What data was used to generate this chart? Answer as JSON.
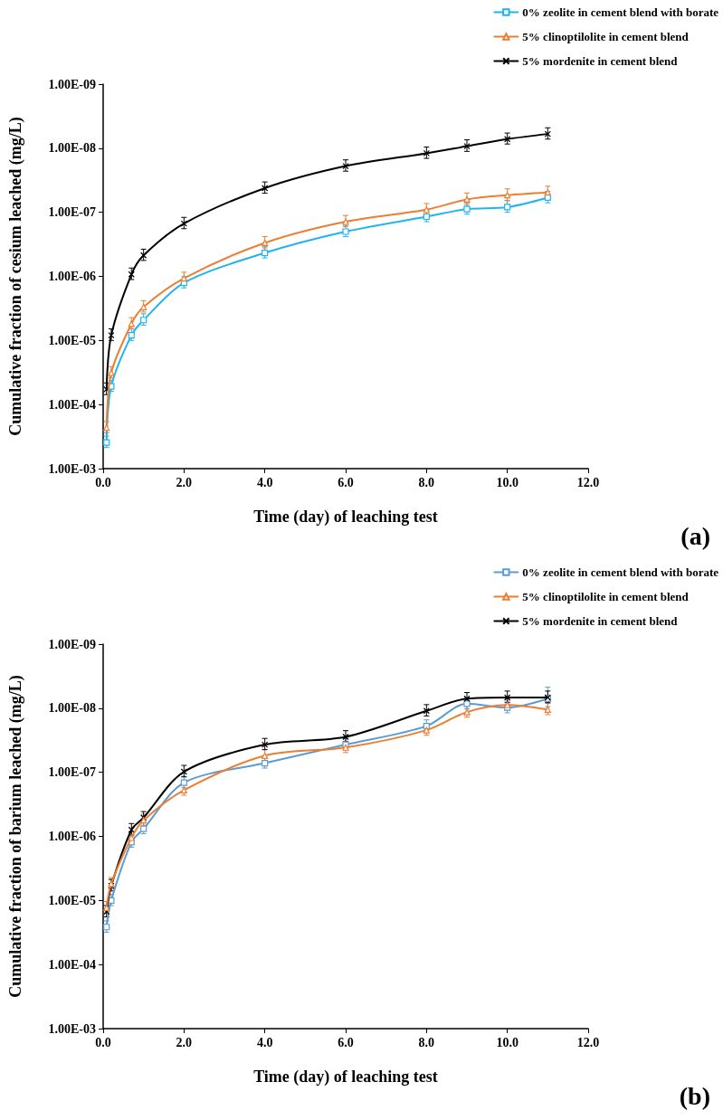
{
  "chart_data": [
    {
      "type": "line",
      "xlabel": "Time (day) of leaching test",
      "ylabel": "Cumulative fraction of cesium leached (mg/L)",
      "annotations": [
        "(a)"
      ],
      "log": "y",
      "grid": false,
      "legend": "top right",
      "line_style": "solid",
      "xlim": [
        0,
        12
      ],
      "xticks": [
        {
          "value": 0,
          "label": "0.0"
        },
        {
          "value": 2,
          "label": "2.0"
        },
        {
          "value": 4,
          "label": "4.0"
        },
        {
          "value": 6,
          "label": "6.0"
        },
        {
          "value": 8,
          "label": "8.0"
        },
        {
          "value": 10,
          "label": "10.0"
        },
        {
          "value": 12,
          "label": "12.0"
        }
      ],
      "ylim": [
        0.001,
        1e-09
      ],
      "yticks": [
        {
          "value": 0.001,
          "label": "1.00E-03"
        },
        {
          "value": 0.0001,
          "label": "1.00E-04"
        },
        {
          "value": 1e-05,
          "label": "1.00E-05"
        },
        {
          "value": 1e-06,
          "label": "1.00E-06"
        },
        {
          "value": 1e-07,
          "label": "1.00E-07"
        },
        {
          "value": 1e-08,
          "label": "1.00E-08"
        },
        {
          "value": 1e-09,
          "label": "1.00E-09"
        }
      ],
      "x": [
        0.083,
        0.2,
        0.7,
        1,
        2,
        4,
        6,
        8,
        9,
        10,
        11
      ],
      "series": [
        {
          "name": "0% zeolite in cement blend with borate",
          "color": "#1fb4f0",
          "marker": "square",
          "values": [
            0.00039,
            5.2e-05,
            8.3e-06,
            4.8e-06,
            1.26e-06,
            4.3e-07,
            2e-07,
            1.17e-07,
            8.9e-08,
            8.3e-08,
            5.9e-08
          ],
          "errors": [
            7.8e-05,
            1e-05,
            1.7e-06,
            9.6e-07,
            2.5e-07,
            8.6e-08,
            4e-08,
            2.3e-08,
            1.8e-08,
            1.7e-08,
            1.2e-08
          ]
        },
        {
          "name": "5% clinoptilolite in cement blend",
          "color": "#ed7d31",
          "marker": "triangle",
          "values": [
            0.00023,
            3.2e-05,
            5.5e-06,
            3e-06,
            1.07e-06,
            3e-07,
            1.4e-07,
            9.1e-08,
            6.3e-08,
            5.4e-08,
            4.9e-08
          ],
          "errors": [
            4.6e-05,
            6.4e-06,
            1.1e-06,
            6e-07,
            2.1e-07,
            6e-08,
            2.8e-08,
            1.8e-08,
            1.3e-08,
            1.1e-08,
            9.8e-09
          ]
        },
        {
          "name": "5% mordenite in cement blend",
          "color": "#000000",
          "marker": "cross",
          "values": [
            5.8e-05,
            8.3e-06,
            9.3e-07,
            4.7e-07,
            1.5e-07,
            4.2e-08,
            1.9e-08,
            1.2e-08,
            9.3e-09,
            7.2e-09,
            6e-09
          ],
          "errors": [
            1.2e-05,
            1.7e-06,
            1.9e-07,
            9.4e-08,
            3e-08,
            8.4e-09,
            3.8e-09,
            2.4e-09,
            1.9e-09,
            1.4e-09,
            1.2e-09
          ]
        }
      ]
    },
    {
      "type": "line",
      "xlabel": "Time (day) of leaching test",
      "ylabel": "Cumulative fraction of barium leached (mg/L)",
      "annotations": [
        "(b)"
      ],
      "log": "y",
      "grid": false,
      "legend": "top right",
      "line_style": "solid",
      "xlim": [
        0,
        12
      ],
      "xticks": [
        {
          "value": 0,
          "label": "0.0"
        },
        {
          "value": 2,
          "label": "2.0"
        },
        {
          "value": 4,
          "label": "4.0"
        },
        {
          "value": 6,
          "label": "6.0"
        },
        {
          "value": 8,
          "label": "8.0"
        },
        {
          "value": 10,
          "label": "10.0"
        },
        {
          "value": 12,
          "label": "12.0"
        }
      ],
      "ylim": [
        0.001,
        1e-09
      ],
      "yticks": [
        {
          "value": 0.001,
          "label": "1.00E-03"
        },
        {
          "value": 0.0001,
          "label": "1.00E-04"
        },
        {
          "value": 1e-05,
          "label": "1.00E-05"
        },
        {
          "value": 1e-06,
          "label": "1.00E-06"
        },
        {
          "value": 1e-07,
          "label": "1.00E-07"
        },
        {
          "value": 1e-08,
          "label": "1.00E-08"
        },
        {
          "value": 1e-09,
          "label": "1.00E-09"
        }
      ],
      "x": [
        0.083,
        0.2,
        0.7,
        1,
        2,
        4,
        6,
        8,
        9,
        10,
        11
      ],
      "series": [
        {
          "name": "0% zeolite in cement blend with borate",
          "color": "#5b9bd5",
          "marker": "square",
          "values": [
            2.6e-05,
            1e-05,
            1.23e-06,
            7.6e-07,
            1.45e-07,
            7.2e-08,
            3.7e-08,
            1.9e-08,
            8.5e-09,
            9.8e-09,
            7.1e-09
          ],
          "errors": [
            5.2e-06,
            2e-06,
            2.5e-07,
            1.5e-07,
            2.9e-08,
            1.4e-08,
            7.4e-09,
            3.8e-09,
            1.7e-09,
            2e-09,
            2.4e-09
          ]
        },
        {
          "name": "5% clinoptilolite in cement blend",
          "color": "#ed7d31",
          "marker": "triangle",
          "values": [
            1.3e-05,
            5.5e-06,
            1.05e-06,
            5.6e-07,
            1.9e-07,
            5.5e-08,
            4.1e-08,
            2.2e-08,
            1.15e-08,
            8.9e-09,
            1.05e-08
          ],
          "errors": [
            2.6e-06,
            1.1e-06,
            2.1e-07,
            1.1e-07,
            3.8e-08,
            1.1e-08,
            8.2e-09,
            4.4e-09,
            2.3e-09,
            1.8e-09,
            2.1e-09
          ]
        },
        {
          "name": "5% mordenite in cement blend",
          "color": "#000000",
          "marker": "cross",
          "values": [
            1.5e-05,
            5.9e-06,
            7.9e-07,
            5.1e-07,
            9.8e-08,
            3.7e-08,
            2.8e-08,
            1.1e-08,
            7.1e-09,
            6.8e-09,
            6.8e-09
          ],
          "errors": [
            3e-06,
            1.2e-06,
            1.6e-07,
            1e-07,
            2e-08,
            7.4e-09,
            5.6e-09,
            2.2e-09,
            1.4e-09,
            1.4e-09,
            1.4e-09
          ]
        }
      ]
    }
  ]
}
